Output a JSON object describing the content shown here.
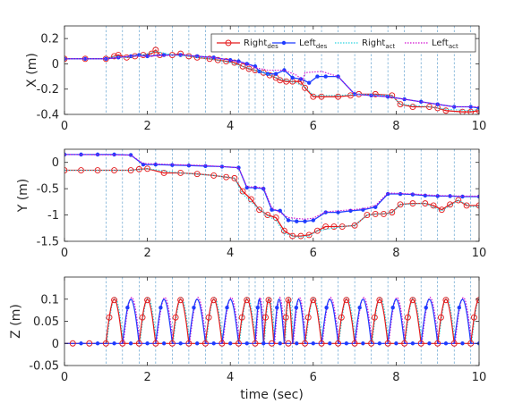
{
  "chart_data": [
    {
      "type": "line",
      "ylabel": "X (m)",
      "xlim": [
        0,
        10
      ],
      "ylim": [
        -0.4,
        0.3
      ],
      "xticks": [
        0,
        2,
        4,
        6,
        8,
        10
      ],
      "yticks": [
        0.2,
        0,
        -0.2,
        -0.4
      ],
      "ytick_labels": [
        "0.2",
        "0",
        "-0.2",
        "-0.4"
      ],
      "legend": {
        "placement": "top-right",
        "entries": [
          {
            "name": "Right",
            "sub": "des",
            "color": "#e41a1c",
            "style": "solid",
            "marker": "circle"
          },
          {
            "name": "Left",
            "sub": "des",
            "color": "#1f3cff",
            "style": "solid",
            "marker": "dot"
          },
          {
            "name": "Right",
            "sub": "act",
            "color": "#2ad4e0",
            "style": "dotted",
            "marker": ""
          },
          {
            "name": "Left",
            "sub": "act",
            "color": "#d10fd1",
            "style": "dotted",
            "marker": ""
          }
        ]
      },
      "series": [
        {
          "name": "Right des",
          "color": "#e41a1c",
          "width": 1.3,
          "dash": "",
          "marker": "circle",
          "x": [
            0,
            0.5,
            1.0,
            1.2,
            1.3,
            1.5,
            1.7,
            1.9,
            2.1,
            2.2,
            2.3,
            2.6,
            2.8,
            3.0,
            3.2,
            3.5,
            3.7,
            3.9,
            4.1,
            4.3,
            4.45,
            4.6,
            4.8,
            4.95,
            5.1,
            5.2,
            5.35,
            5.5,
            5.7,
            5.8,
            6.0,
            6.2,
            6.6,
            6.9,
            7.1,
            7.5,
            7.9,
            8.1,
            8.4,
            8.8,
            9.0,
            9.2,
            9.6,
            9.8,
            10.0
          ],
          "y": [
            0.04,
            0.04,
            0.04,
            0.06,
            0.07,
            0.05,
            0.06,
            0.07,
            0.08,
            0.11,
            0.07,
            0.07,
            0.08,
            0.06,
            0.05,
            0.04,
            0.03,
            0.02,
            0.01,
            -0.02,
            -0.04,
            -0.05,
            -0.07,
            -0.09,
            -0.11,
            -0.13,
            -0.14,
            -0.14,
            -0.14,
            -0.19,
            -0.26,
            -0.26,
            -0.26,
            -0.25,
            -0.24,
            -0.24,
            -0.25,
            -0.32,
            -0.34,
            -0.34,
            -0.35,
            -0.37,
            -0.38,
            -0.38,
            -0.37
          ]
        },
        {
          "name": "Left des",
          "color": "#1f3cff",
          "width": 1.3,
          "dash": "",
          "marker": "dot",
          "x": [
            0,
            0.5,
            1.0,
            1.3,
            1.6,
            1.8,
            2.0,
            2.4,
            2.8,
            3.2,
            3.6,
            4.0,
            4.2,
            4.4,
            4.6,
            4.7,
            4.9,
            5.1,
            5.3,
            5.5,
            5.7,
            5.9,
            6.1,
            6.3,
            6.6,
            7.0,
            7.4,
            7.8,
            8.2,
            8.6,
            9.0,
            9.4,
            9.8,
            10.0
          ],
          "y": [
            0.04,
            0.04,
            0.04,
            0.05,
            0.06,
            0.07,
            0.06,
            0.07,
            0.07,
            0.06,
            0.05,
            0.03,
            0.02,
            0.0,
            -0.02,
            -0.06,
            -0.08,
            -0.08,
            -0.05,
            -0.11,
            -0.12,
            -0.15,
            -0.1,
            -0.1,
            -0.1,
            -0.24,
            -0.25,
            -0.26,
            -0.28,
            -0.3,
            -0.32,
            -0.34,
            -0.34,
            -0.35
          ]
        },
        {
          "name": "Right act",
          "color": "#2ad4e0",
          "width": 1.1,
          "dash": "1.5,1.5",
          "marker": "",
          "x": [
            0,
            1.0,
            1.2,
            1.5,
            1.9,
            2.2,
            2.6,
            3.0,
            3.5,
            4.0,
            4.4,
            4.8,
            5.2,
            5.5,
            5.8,
            6.0,
            6.6,
            7.1,
            7.9,
            8.1,
            8.8,
            9.2,
            9.8,
            10.0
          ],
          "y": [
            0.04,
            0.04,
            0.06,
            0.05,
            0.07,
            0.1,
            0.07,
            0.06,
            0.04,
            0.01,
            -0.03,
            -0.07,
            -0.12,
            -0.14,
            -0.18,
            -0.25,
            -0.25,
            -0.24,
            -0.25,
            -0.32,
            -0.34,
            -0.36,
            -0.37,
            -0.36
          ]
        },
        {
          "name": "Left act",
          "color": "#d10fd1",
          "width": 1.1,
          "dash": "1.5,1.5",
          "marker": "",
          "x": [
            0,
            1.0,
            1.6,
            2.0,
            2.8,
            3.6,
            4.0,
            4.4,
            4.6,
            4.9,
            5.3,
            5.6,
            5.75,
            5.8,
            6.2,
            6.6,
            7.0,
            7.8,
            8.6,
            9.4,
            10.0
          ],
          "y": [
            0.04,
            0.04,
            0.06,
            0.06,
            0.07,
            0.05,
            0.03,
            0.0,
            -0.03,
            -0.05,
            -0.05,
            -0.09,
            -0.13,
            -0.07,
            -0.06,
            -0.1,
            -0.24,
            -0.26,
            -0.3,
            -0.34,
            -0.34
          ]
        }
      ]
    },
    {
      "type": "line",
      "ylabel": "Y (m)",
      "xlim": [
        0,
        10
      ],
      "ylim": [
        -1.5,
        0.25
      ],
      "xticks": [
        0,
        2,
        4,
        6,
        8,
        10
      ],
      "yticks": [
        0,
        -0.5,
        -1,
        -1.5
      ],
      "ytick_labels": [
        "0",
        "-0.5",
        "-1",
        "-1.5"
      ],
      "series": [
        {
          "name": "Right des",
          "color": "#e41a1c",
          "width": 1.3,
          "dash": "",
          "marker": "circle",
          "x": [
            0,
            0.4,
            0.8,
            1.2,
            1.6,
            1.8,
            2.0,
            2.4,
            2.8,
            3.2,
            3.6,
            3.9,
            4.1,
            4.3,
            4.5,
            4.7,
            4.9,
            5.1,
            5.3,
            5.5,
            5.7,
            5.9,
            6.1,
            6.3,
            6.5,
            6.7,
            7.0,
            7.3,
            7.5,
            7.7,
            7.9,
            8.1,
            8.4,
            8.7,
            8.9,
            9.1,
            9.3,
            9.5,
            9.7,
            10.0
          ],
          "y": [
            -0.15,
            -0.15,
            -0.15,
            -0.15,
            -0.15,
            -0.13,
            -0.12,
            -0.2,
            -0.2,
            -0.22,
            -0.25,
            -0.28,
            -0.3,
            -0.55,
            -0.7,
            -0.9,
            -1.0,
            -1.05,
            -1.3,
            -1.4,
            -1.4,
            -1.38,
            -1.3,
            -1.22,
            -1.22,
            -1.22,
            -1.2,
            -1.0,
            -0.98,
            -0.98,
            -0.95,
            -0.8,
            -0.78,
            -0.78,
            -0.82,
            -0.9,
            -0.8,
            -0.72,
            -0.82,
            -0.82
          ]
        },
        {
          "name": "Left des",
          "color": "#1f3cff",
          "width": 1.3,
          "dash": "",
          "marker": "dot",
          "x": [
            0,
            0.4,
            0.8,
            1.2,
            1.6,
            1.9,
            2.2,
            2.6,
            3.0,
            3.4,
            3.8,
            4.2,
            4.4,
            4.6,
            4.8,
            5.0,
            5.2,
            5.4,
            5.6,
            5.8,
            6.0,
            6.3,
            6.6,
            6.9,
            7.2,
            7.5,
            7.8,
            8.1,
            8.4,
            8.7,
            9.0,
            9.3,
            9.6,
            10.0
          ],
          "y": [
            0.15,
            0.15,
            0.15,
            0.15,
            0.14,
            -0.04,
            -0.04,
            -0.05,
            -0.06,
            -0.07,
            -0.08,
            -0.1,
            -0.48,
            -0.48,
            -0.5,
            -0.9,
            -0.92,
            -1.1,
            -1.12,
            -1.12,
            -1.1,
            -0.95,
            -0.95,
            -0.92,
            -0.9,
            -0.85,
            -0.6,
            -0.6,
            -0.61,
            -0.63,
            -0.64,
            -0.64,
            -0.65,
            -0.65
          ]
        },
        {
          "name": "Right act",
          "color": "#2ad4e0",
          "width": 1.1,
          "dash": "1.5,1.5",
          "marker": "",
          "x": [
            0,
            1.6,
            2.0,
            2.8,
            3.6,
            4.1,
            4.3,
            4.5,
            4.9,
            5.1,
            5.3,
            5.6,
            5.9,
            6.1,
            6.7,
            7.0,
            7.3,
            7.9,
            8.1,
            8.7,
            9.1,
            9.5,
            9.8,
            10.0
          ],
          "y": [
            -0.15,
            -0.15,
            -0.12,
            -0.2,
            -0.25,
            -0.3,
            -0.6,
            -0.75,
            -1.02,
            -1.1,
            -1.35,
            -1.42,
            -1.4,
            -1.3,
            -1.22,
            -1.2,
            -1.0,
            -0.96,
            -0.8,
            -0.78,
            -0.92,
            -0.72,
            -0.84,
            -0.84
          ]
        },
        {
          "name": "Left act",
          "color": "#d10fd1",
          "width": 1.1,
          "dash": "1.5,1.5",
          "marker": "",
          "x": [
            0,
            1.6,
            1.9,
            2.6,
            3.4,
            4.2,
            4.4,
            4.8,
            5.0,
            5.4,
            5.8,
            6.0,
            6.3,
            7.2,
            7.5,
            7.8,
            8.4,
            9.0,
            9.6,
            10.0
          ],
          "y": [
            0.15,
            0.14,
            -0.02,
            -0.04,
            -0.06,
            -0.1,
            -0.46,
            -0.48,
            -0.86,
            -1.05,
            -1.08,
            -1.06,
            -0.94,
            -0.88,
            -0.82,
            -0.58,
            -0.6,
            -0.63,
            -0.64,
            -0.64
          ]
        }
      ]
    },
    {
      "type": "line",
      "ylabel": "Z (m)",
      "xlabel": "time (sec)",
      "xlim": [
        0,
        10
      ],
      "ylim": [
        -0.05,
        0.15
      ],
      "xticks": [
        0,
        2,
        4,
        6,
        8,
        10
      ],
      "yticks": [
        0.1,
        0.05,
        0,
        -0.05
      ],
      "ytick_labels": [
        "0.1",
        "0.05",
        "0",
        "-0.05"
      ],
      "right_steps": [
        [
          1.0,
          1.4
        ],
        [
          1.8,
          2.2
        ],
        [
          2.6,
          3.0
        ],
        [
          3.4,
          3.8
        ],
        [
          4.2,
          4.6
        ],
        [
          4.8,
          5.05
        ],
        [
          5.3,
          5.5
        ],
        [
          5.8,
          6.2
        ],
        [
          6.6,
          7.0
        ],
        [
          7.4,
          7.8
        ],
        [
          8.2,
          8.6
        ],
        [
          9.0,
          9.4
        ],
        [
          9.8,
          10.2
        ]
      ],
      "left_steps": [
        [
          1.4,
          1.8
        ],
        [
          2.2,
          2.6
        ],
        [
          3.0,
          3.4
        ],
        [
          3.8,
          4.2
        ],
        [
          4.6,
          4.8
        ],
        [
          5.05,
          5.3
        ],
        [
          5.5,
          5.8
        ],
        [
          6.2,
          6.6
        ],
        [
          7.0,
          7.4
        ],
        [
          7.8,
          8.2
        ],
        [
          8.6,
          9.0
        ],
        [
          9.4,
          9.8
        ]
      ],
      "peak": 0.1
    }
  ],
  "event_lines_x": [
    1.0,
    1.4,
    1.8,
    2.2,
    2.6,
    3.0,
    3.4,
    3.8,
    4.2,
    4.45,
    4.6,
    4.8,
    5.05,
    5.3,
    5.5,
    5.8,
    6.2,
    6.6,
    7.0,
    7.4,
    7.8,
    8.2,
    8.6,
    9.0,
    9.4,
    9.8
  ],
  "colors": {
    "right_des": "#e41a1c",
    "left_des": "#1f3cff",
    "right_act": "#2ad4e0",
    "left_act": "#d10fd1",
    "event_line": "#4d94c8"
  }
}
